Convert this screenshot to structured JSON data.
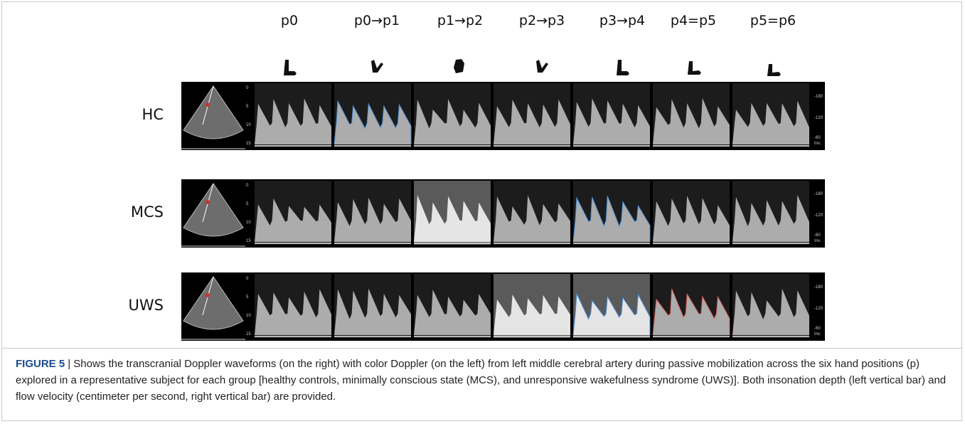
{
  "figure": {
    "columns": [
      "p0",
      "p0→p1",
      "p1→p2",
      "p2→p3",
      "p3→p4",
      "p4=p5",
      "p5=p6"
    ],
    "rows": [
      {
        "label": "HC",
        "depth_labels": [
          "0",
          "5",
          "10",
          "15"
        ],
        "velocity_labels": [
          "-180",
          "-120",
          "-60",
          "Inv."
        ]
      },
      {
        "label": "MCS",
        "depth_labels": [
          "0",
          "5",
          "10",
          "15"
        ],
        "velocity_labels": [
          "-180",
          "-120",
          "-60",
          "Inv."
        ]
      },
      {
        "label": "UWS",
        "depth_labels": [
          "0",
          "5",
          "10",
          "15"
        ],
        "velocity_labels": [
          "-180",
          "-120",
          "-60",
          "Inv."
        ]
      }
    ],
    "caption": {
      "label": "FIGURE 5",
      "text": "| Shows the transcranial Doppler waveforms (on the right) with color Doppler (on the left) from left middle cerebral artery during passive mobilization across the six hand positions (p) explored in a representative subject for each group [healthy controls, minimally conscious state (MCS), and unresponsive wakefulness syndrome (UWS)]. Both insonation depth (left vertical bar) and flow velocity (centimeter per second, right vertical bar) are provided."
    }
  }
}
